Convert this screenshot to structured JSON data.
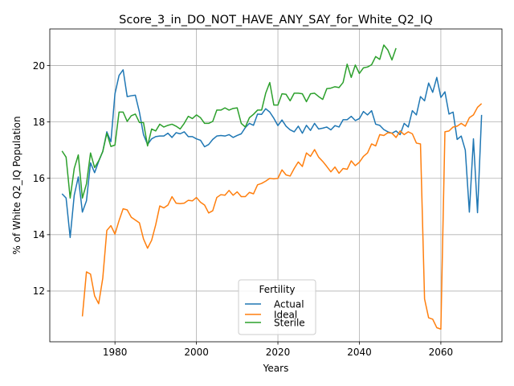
{
  "chart_data": {
    "type": "line",
    "title": "Score_3_in_DO_NOT_HAVE_ANY_SAY_for_White_Q2_IQ",
    "xlabel": "Years",
    "ylabel": "% of White Q2_IQ Population",
    "xlim": [
      1964,
      2075
    ],
    "ylim": [
      10.2,
      21.3
    ],
    "xticks": [
      1980,
      2000,
      2020,
      2040,
      2060
    ],
    "yticks": [
      12,
      14,
      16,
      18,
      20
    ],
    "xtick_labels": [
      "1980",
      "2000",
      "2020",
      "2040",
      "2060"
    ],
    "ytick_labels": [
      "12",
      "14",
      "16",
      "18",
      "20"
    ],
    "grid": true,
    "legend": {
      "title": "Fertility",
      "location": "lower center"
    },
    "series": [
      {
        "name": "Actual",
        "color": "#1f77b4",
        "x": [
          1967,
          1968,
          1969,
          1970,
          1971,
          1972,
          1973,
          1974,
          1975,
          1976,
          1977,
          1978,
          1979,
          1980,
          1981,
          1982,
          1983,
          1984,
          1985,
          1986,
          1987,
          1988,
          1989,
          1990,
          1991,
          1992,
          1993,
          1994,
          1995,
          1996,
          1997,
          1998,
          1999,
          2000,
          2001,
          2002,
          2003,
          2004,
          2005,
          2006,
          2007,
          2008,
          2009,
          2010,
          2011,
          2012,
          2013,
          2014,
          2015,
          2016,
          2017,
          2018,
          2019,
          2020,
          2021,
          2022,
          2023,
          2024,
          2025,
          2026,
          2027,
          2028,
          2029,
          2030,
          2031,
          2032,
          2033,
          2034,
          2035,
          2036,
          2037,
          2038,
          2039,
          2040,
          2041,
          2042,
          2043,
          2044,
          2045,
          2046,
          2047,
          2048,
          2049,
          2050,
          2051,
          2052,
          2053,
          2054,
          2055,
          2056,
          2057,
          2058,
          2059,
          2060,
          2061,
          2062,
          2063,
          2064,
          2065,
          2066,
          2067,
          2068,
          2069,
          2070
        ],
        "values": [
          15.45,
          15.3,
          13.9,
          15.4,
          16.05,
          14.8,
          15.2,
          16.55,
          16.2,
          16.6,
          16.95,
          17.65,
          17.3,
          19.0,
          19.65,
          19.85,
          18.9,
          18.93,
          18.95,
          18.35,
          17.55,
          17.2,
          17.4,
          17.48,
          17.5,
          17.5,
          17.6,
          17.45,
          17.62,
          17.58,
          17.65,
          17.48,
          17.48,
          17.4,
          17.35,
          17.12,
          17.2,
          17.38,
          17.5,
          17.52,
          17.5,
          17.55,
          17.45,
          17.52,
          17.58,
          17.8,
          17.95,
          17.88,
          18.28,
          18.27,
          18.47,
          18.35,
          18.13,
          17.87,
          18.07,
          17.85,
          17.72,
          17.65,
          17.85,
          17.6,
          17.88,
          17.7,
          17.95,
          17.75,
          17.78,
          17.82,
          17.72,
          17.87,
          17.82,
          18.08,
          18.08,
          18.2,
          18.05,
          18.12,
          18.37,
          18.25,
          18.4,
          17.92,
          17.88,
          17.73,
          17.65,
          17.6,
          17.68,
          17.55,
          17.95,
          17.82,
          18.4,
          18.25,
          18.9,
          18.75,
          19.38,
          19.05,
          19.58,
          18.87,
          19.07,
          18.28,
          18.35,
          17.38,
          17.5,
          17.0,
          14.8,
          17.4,
          14.78,
          18.25
        ]
      },
      {
        "name": "Ideal",
        "color": "#ff7f0e",
        "x": [
          1972,
          1973,
          1974,
          1975,
          1976,
          1977,
          1978,
          1979,
          1980,
          1981,
          1982,
          1983,
          1984,
          1985,
          1986,
          1987,
          1988,
          1989,
          1990,
          1991,
          1992,
          1993,
          1994,
          1995,
          1996,
          1997,
          1998,
          1999,
          2000,
          2001,
          2002,
          2003,
          2004,
          2005,
          2006,
          2007,
          2008,
          2009,
          2010,
          2011,
          2012,
          2013,
          2014,
          2015,
          2016,
          2017,
          2018,
          2019,
          2020,
          2021,
          2022,
          2023,
          2024,
          2025,
          2026,
          2027,
          2028,
          2029,
          2030,
          2031,
          2032,
          2033,
          2034,
          2035,
          2036,
          2037,
          2038,
          2039,
          2040,
          2041,
          2042,
          2043,
          2044,
          2045,
          2046,
          2047,
          2048,
          2049,
          2050,
          2051,
          2052,
          2053,
          2054,
          2055,
          2056,
          2057,
          2058,
          2059,
          2060,
          2061,
          2062,
          2063,
          2064,
          2065,
          2066,
          2067,
          2068,
          2069,
          2070
        ],
        "values": [
          11.1,
          12.68,
          12.6,
          11.83,
          11.55,
          12.45,
          14.15,
          14.32,
          14.02,
          14.5,
          14.92,
          14.88,
          14.62,
          14.52,
          14.42,
          13.85,
          13.52,
          13.8,
          14.35,
          15.02,
          14.95,
          15.05,
          15.35,
          15.12,
          15.1,
          15.12,
          15.22,
          15.2,
          15.32,
          15.15,
          15.05,
          14.77,
          14.85,
          15.32,
          15.42,
          15.4,
          15.57,
          15.4,
          15.52,
          15.35,
          15.35,
          15.5,
          15.45,
          15.77,
          15.82,
          15.9,
          16.0,
          15.98,
          16.0,
          16.3,
          16.12,
          16.08,
          16.35,
          16.58,
          16.42,
          16.9,
          16.78,
          17.02,
          16.75,
          16.6,
          16.42,
          16.23,
          16.4,
          16.18,
          16.35,
          16.32,
          16.62,
          16.45,
          16.57,
          16.78,
          16.9,
          17.22,
          17.15,
          17.55,
          17.52,
          17.62,
          17.6,
          17.45,
          17.68,
          17.55,
          17.65,
          17.58,
          17.25,
          17.22,
          11.72,
          11.05,
          11.0,
          10.7,
          10.65,
          17.65,
          17.68,
          17.82,
          17.85,
          17.95,
          17.85,
          18.15,
          18.25,
          18.52,
          18.65
        ]
      },
      {
        "name": "Sterile",
        "color": "#2ca02c",
        "x": [
          1967,
          1968,
          1969,
          1970,
          1971,
          1972,
          1973,
          1974,
          1975,
          1976,
          1977,
          1978,
          1979,
          1980,
          1981,
          1982,
          1983,
          1984,
          1985,
          1986,
          1987,
          1988,
          1989,
          1990,
          1991,
          1992,
          1993,
          1994,
          1995,
          1996,
          1997,
          1998,
          1999,
          2000,
          2001,
          2002,
          2003,
          2004,
          2005,
          2006,
          2007,
          2008,
          2009,
          2010,
          2011,
          2012,
          2013,
          2014,
          2015,
          2016,
          2017,
          2018,
          2019,
          2020,
          2021,
          2022,
          2023,
          2024,
          2025,
          2026,
          2027,
          2028,
          2029,
          2030,
          2031,
          2032,
          2033,
          2034,
          2035,
          2036,
          2037,
          2038,
          2039,
          2040,
          2041,
          2042,
          2043,
          2044,
          2045,
          2046,
          2047,
          2048,
          2049
        ],
        "values": [
          16.97,
          16.75,
          15.3,
          16.35,
          16.83,
          15.3,
          15.8,
          16.9,
          16.38,
          16.62,
          16.95,
          17.6,
          17.13,
          17.18,
          18.35,
          18.35,
          18.02,
          18.22,
          18.28,
          17.98,
          17.98,
          17.15,
          17.75,
          17.68,
          17.92,
          17.82,
          17.88,
          17.92,
          17.85,
          17.75,
          17.95,
          18.2,
          18.12,
          18.25,
          18.15,
          17.95,
          17.95,
          18.02,
          18.42,
          18.42,
          18.5,
          18.42,
          18.48,
          18.5,
          17.95,
          17.82,
          18.15,
          18.27,
          18.42,
          18.42,
          19.02,
          19.4,
          18.6,
          18.6,
          19.0,
          18.98,
          18.75,
          19.02,
          19.02,
          19.0,
          18.72,
          19.0,
          19.02,
          18.9,
          18.8,
          19.18,
          19.2,
          19.25,
          19.22,
          19.4,
          20.05,
          19.58,
          20.02,
          19.72,
          19.92,
          19.95,
          20.03,
          20.32,
          20.22,
          20.73,
          20.55,
          20.2,
          20.62
        ]
      }
    ]
  }
}
